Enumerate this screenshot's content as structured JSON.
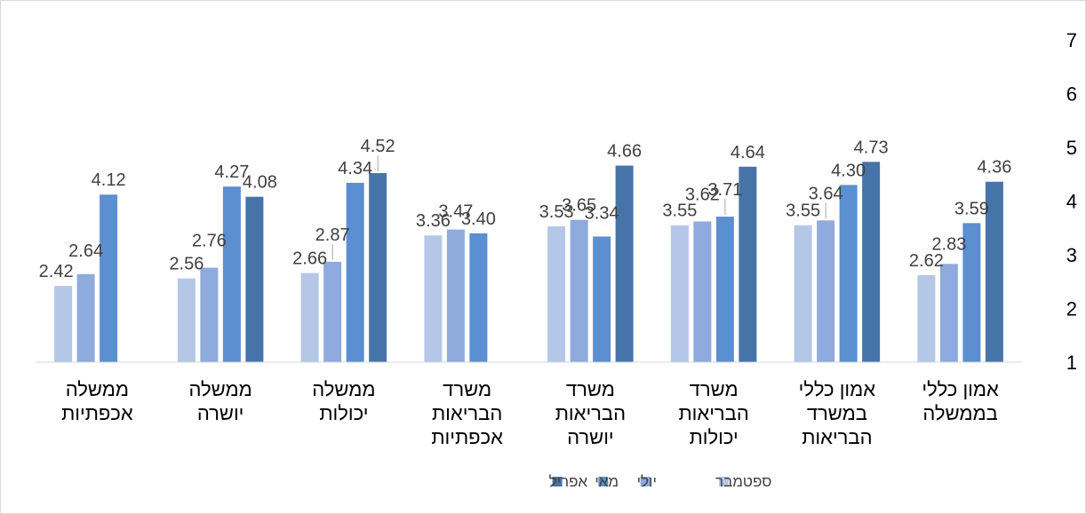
{
  "chart_data": {
    "type": "bar",
    "orientation": "rtl",
    "title": "",
    "xlabel": "",
    "ylabel": "",
    "ylim": [
      1,
      7
    ],
    "yticks": [
      1,
      2,
      3,
      4,
      5,
      6,
      7
    ],
    "grid": false,
    "legend_position": "bottom",
    "categories": [
      [
        "אמון כללי",
        "בממשלה"
      ],
      [
        "אמון כללי",
        "במשרד",
        "הבריאות"
      ],
      [
        "משרד",
        "הבריאות",
        "יכולות"
      ],
      [
        "משרד",
        "הבריאות",
        "יושרה"
      ],
      [
        "משרד",
        "הבריאות",
        "אכפתיות"
      ],
      [
        "ממשלה",
        "יכולות"
      ],
      [
        "ממשלה",
        "יושרה"
      ],
      [
        "ממשלה",
        "אכפתיות"
      ]
    ],
    "series": [
      {
        "name": "ספטמבר",
        "color": "#b4c7e7",
        "values": [
          2.62,
          3.55,
          3.55,
          3.53,
          3.36,
          2.66,
          2.56,
          2.42
        ]
      },
      {
        "name": "יולי",
        "color": "#8faadc",
        "values": [
          2.83,
          3.64,
          3.62,
          3.65,
          3.47,
          2.87,
          2.76,
          2.64
        ]
      },
      {
        "name": "מאי",
        "color": "#5b8fd0",
        "values": [
          3.59,
          4.3,
          3.71,
          3.34,
          3.4,
          4.34,
          4.27,
          4.12
        ]
      },
      {
        "name": "אפריל",
        "color": "#4674a8",
        "values": [
          4.36,
          4.73,
          4.64,
          4.66,
          null,
          4.52,
          4.08,
          null
        ]
      }
    ]
  }
}
